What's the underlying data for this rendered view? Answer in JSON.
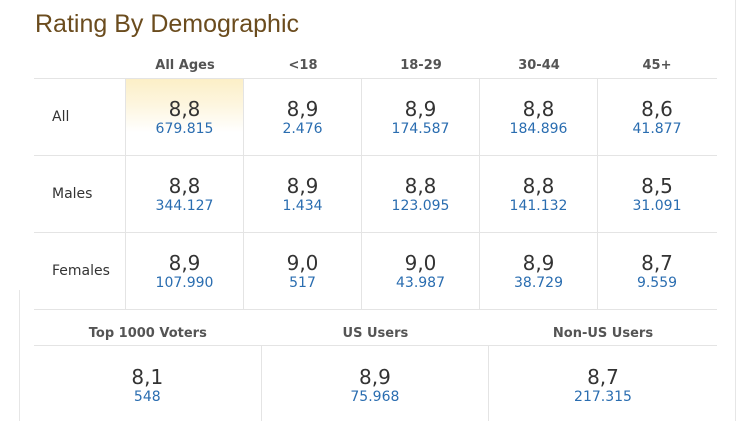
{
  "title": "Rating By Demographic",
  "columns": [
    "All Ages",
    "<18",
    "18-29",
    "30-44",
    "45+"
  ],
  "rows": [
    {
      "label": "All",
      "cells": [
        {
          "rating": "8,8",
          "votes": "679.815"
        },
        {
          "rating": "8,9",
          "votes": "2.476"
        },
        {
          "rating": "8,9",
          "votes": "174.587"
        },
        {
          "rating": "8,8",
          "votes": "184.896"
        },
        {
          "rating": "8,6",
          "votes": "41.877"
        }
      ]
    },
    {
      "label": "Males",
      "cells": [
        {
          "rating": "8,8",
          "votes": "344.127"
        },
        {
          "rating": "8,9",
          "votes": "1.434"
        },
        {
          "rating": "8,8",
          "votes": "123.095"
        },
        {
          "rating": "8,8",
          "votes": "141.132"
        },
        {
          "rating": "8,5",
          "votes": "31.091"
        }
      ]
    },
    {
      "label": "Females",
      "cells": [
        {
          "rating": "8,9",
          "votes": "107.990"
        },
        {
          "rating": "9,0",
          "votes": "517"
        },
        {
          "rating": "9,0",
          "votes": "43.987"
        },
        {
          "rating": "8,9",
          "votes": "38.729"
        },
        {
          "rating": "8,7",
          "votes": "9.559"
        }
      ]
    }
  ],
  "bottom": {
    "columns": [
      "Top 1000 Voters",
      "US Users",
      "Non-US Users"
    ],
    "cells": [
      {
        "rating": "8,1",
        "votes": "548"
      },
      {
        "rating": "8,9",
        "votes": "75.968"
      },
      {
        "rating": "8,7",
        "votes": "217.315"
      }
    ]
  },
  "colors": {
    "title": "#6b4c1e",
    "votes_link": "#2a6db0",
    "highlight": "#fcefc7"
  }
}
